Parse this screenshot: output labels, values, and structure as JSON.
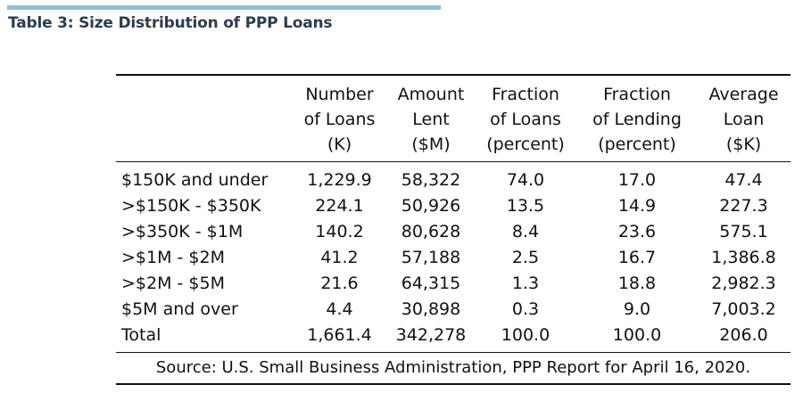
{
  "title": "Table 3: Size Distribution of PPP Loans",
  "colors": {
    "accent_bar": "#8fc1d4",
    "title_text": "#2b3d50",
    "rule": "#111111"
  },
  "table": {
    "headers": [
      [
        "",
        "",
        ""
      ],
      [
        "Number",
        "of Loans",
        "(K)"
      ],
      [
        "Amount",
        "Lent",
        "($M)"
      ],
      [
        "Fraction",
        "of Loans",
        "(percent)"
      ],
      [
        "Fraction",
        "of Lending",
        "(percent)"
      ],
      [
        "Average",
        "Loan",
        "($K)"
      ]
    ],
    "rows": [
      [
        "$150K and under",
        "1,229.9",
        "58,322",
        "74.0",
        "17.0",
        "47.4"
      ],
      [
        ">$150K - $350K",
        "224.1",
        "50,926",
        "13.5",
        "14.9",
        "227.3"
      ],
      [
        ">$350K - $1M",
        "140.2",
        "80,628",
        "8.4",
        "23.6",
        "575.1"
      ],
      [
        ">$1M - $2M",
        "41.2",
        "57,188",
        "2.5",
        "16.7",
        "1,386.8"
      ],
      [
        ">$2M - $5M",
        "21.6",
        "64,315",
        "1.3",
        "18.8",
        "2,982.3"
      ],
      [
        "$5M and over",
        "4.4",
        "30,898",
        "0.3",
        "9.0",
        "7,003.2"
      ],
      [
        "Total",
        "1,661.4",
        "342,278",
        "100.0",
        "100.0",
        "206.0"
      ]
    ],
    "source": "Source: U.S. Small Business Administration, PPP Report for April 16, 2020."
  }
}
